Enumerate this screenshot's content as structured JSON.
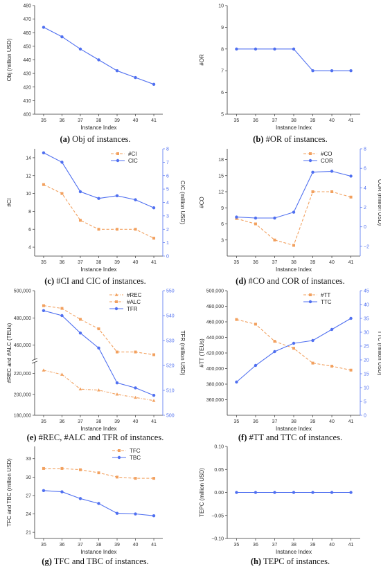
{
  "colors": {
    "blue": "#4f6ff0",
    "orange": "#f2a05e",
    "axis": "#333333"
  },
  "chart_data": [
    {
      "id": "a",
      "type": "line",
      "caption_letter": "(a)",
      "caption_text": " Obj of instances.",
      "xlabel": "Instance Index",
      "ylabel": "Obj (million USD)",
      "x": [
        35,
        36,
        37,
        38,
        39,
        40,
        41
      ],
      "ylim": [
        400,
        480
      ],
      "yticks": [
        400,
        410,
        420,
        430,
        440,
        450,
        460,
        470,
        480
      ],
      "series": [
        {
          "name": "",
          "axis": "left",
          "color": "blue",
          "style": "solid",
          "marker": "circle",
          "values": [
            464,
            457,
            448,
            440,
            432,
            427,
            422
          ]
        }
      ]
    },
    {
      "id": "b",
      "type": "line",
      "caption_letter": "(b)",
      "caption_text": " #OR of instances.",
      "xlabel": "Instance Index",
      "ylabel": "#OR",
      "x": [
        35,
        36,
        37,
        38,
        39,
        40,
        41
      ],
      "ylim": [
        5,
        10
      ],
      "yticks": [
        5,
        6,
        7,
        8,
        9,
        10
      ],
      "series": [
        {
          "name": "",
          "axis": "left",
          "color": "blue",
          "style": "solid",
          "marker": "circle",
          "values": [
            8,
            8,
            8,
            8,
            7,
            7,
            7
          ]
        }
      ]
    },
    {
      "id": "c",
      "type": "line",
      "caption_letter": "(c)",
      "caption_text": " #CI and CIC of instances.",
      "xlabel": "Instance Index",
      "ylabel": "#CI",
      "ylabel2": "CIC (million USD)",
      "x": [
        35,
        36,
        37,
        38,
        39,
        40,
        41
      ],
      "ylim": [
        3,
        15
      ],
      "yticks": [
        4,
        6,
        8,
        10,
        12,
        14
      ],
      "y2lim": [
        0,
        8
      ],
      "y2ticks": [
        0,
        1,
        2,
        3,
        4,
        5,
        6,
        7,
        8
      ],
      "legend": "top-right",
      "series": [
        {
          "name": "#CI",
          "axis": "left",
          "color": "orange",
          "style": "dashed",
          "marker": "square",
          "values": [
            11,
            10,
            7,
            6,
            6,
            6,
            5
          ]
        },
        {
          "name": "CIC",
          "axis": "right",
          "color": "blue",
          "style": "solid",
          "marker": "circle",
          "values": [
            7.7,
            7.0,
            4.8,
            4.3,
            4.5,
            4.2,
            3.6
          ]
        }
      ]
    },
    {
      "id": "d",
      "type": "line",
      "caption_letter": "(d)",
      "caption_text": " #CO and COR of instances.",
      "xlabel": "Instance Index",
      "ylabel": "#CO",
      "ylabel2": "COR (million USD)",
      "x": [
        35,
        36,
        37,
        38,
        39,
        40,
        41
      ],
      "ylim": [
        0,
        20
      ],
      "yticks": [
        3,
        6,
        9,
        12,
        15,
        18
      ],
      "y2lim": [
        -3,
        8
      ],
      "y2ticks": [
        -2,
        0,
        2,
        4,
        6,
        8
      ],
      "legend": "top-right",
      "series": [
        {
          "name": "#CO",
          "axis": "left",
          "color": "orange",
          "style": "dashed",
          "marker": "square",
          "values": [
            7,
            6,
            3,
            2,
            12,
            12,
            11
          ]
        },
        {
          "name": "COR",
          "axis": "right",
          "color": "blue",
          "style": "solid",
          "marker": "circle",
          "values": [
            1.0,
            0.9,
            0.9,
            1.5,
            5.6,
            5.7,
            5.2
          ]
        }
      ]
    },
    {
      "id": "e",
      "type": "line",
      "caption_letter": "(e)",
      "caption_text": " #REC, #ALC and TFR of instances.",
      "xlabel": "Instance Index",
      "ylabel": "#REC and #ALC (TEUs)",
      "ylabel2": "TFR (million USD)",
      "x": [
        35,
        36,
        37,
        38,
        39,
        40,
        41
      ],
      "ytick_labels": [
        "180,000",
        "200,000",
        "220,000",
        "460,000",
        "480,000",
        "500,000"
      ],
      "y_break": [
        220000,
        450000
      ],
      "y2lim": [
        500,
        550
      ],
      "y2ticks": [
        500,
        510,
        520,
        530,
        540,
        550
      ],
      "legend": "top-right",
      "series": [
        {
          "name": "#REC",
          "axis": "left",
          "color": "orange",
          "style": "dashdot",
          "marker": "triangle",
          "values": [
            223000,
            219000,
            205000,
            204000,
            200000,
            197000,
            194000
          ]
        },
        {
          "name": "#ALC",
          "axis": "left",
          "color": "orange",
          "style": "dashed",
          "marker": "square",
          "values": [
            489000,
            487000,
            479000,
            472000,
            455000,
            455000,
            453000
          ]
        },
        {
          "name": "TFR",
          "axis": "right",
          "color": "blue",
          "style": "solid",
          "marker": "circle",
          "values": [
            542,
            540,
            533,
            527,
            513,
            511,
            508
          ]
        }
      ]
    },
    {
      "id": "f",
      "type": "line",
      "caption_letter": "(f)",
      "caption_text": " #TT and TTC of instances.",
      "xlabel": "Instance Index",
      "ylabel": "#TT (TEUs)",
      "ylabel2": "TTC (million USD)",
      "x": [
        35,
        36,
        37,
        38,
        39,
        40,
        41
      ],
      "ylim": [
        340000,
        500000
      ],
      "yticks": [
        360000,
        380000,
        400000,
        420000,
        440000,
        460000,
        480000,
        500000
      ],
      "ytick_labels": [
        "360,000",
        "380,000",
        "400,000",
        "420,000",
        "440,000",
        "460,000",
        "480,000",
        "500,000"
      ],
      "y2lim": [
        0,
        45
      ],
      "y2ticks": [
        0,
        5,
        10,
        15,
        20,
        25,
        30,
        35,
        40,
        45
      ],
      "legend": "top-right",
      "series": [
        {
          "name": "#TT",
          "axis": "left",
          "color": "orange",
          "style": "dashed",
          "marker": "square",
          "values": [
            463000,
            457000,
            435000,
            426000,
            407000,
            403000,
            398000
          ]
        },
        {
          "name": "TTC",
          "axis": "right",
          "color": "blue",
          "style": "solid",
          "marker": "circle",
          "values": [
            12,
            18,
            23,
            26,
            27,
            31,
            35
          ]
        }
      ]
    },
    {
      "id": "g",
      "type": "line",
      "caption_letter": "(g)",
      "caption_text": " TFC and TBC of instances.",
      "xlabel": "Instance Index",
      "ylabel": "TFC and TBC (million USD)",
      "x": [
        35,
        36,
        37,
        38,
        39,
        40,
        41
      ],
      "ylim": [
        20,
        35
      ],
      "yticks": [
        21,
        24,
        27,
        30,
        33
      ],
      "legend": "top-right",
      "series": [
        {
          "name": "TFC",
          "axis": "left",
          "color": "orange",
          "style": "dashed",
          "marker": "square",
          "values": [
            31.4,
            31.4,
            31.2,
            30.7,
            30.0,
            29.8,
            29.8
          ]
        },
        {
          "name": "TBC",
          "axis": "left",
          "color": "blue",
          "style": "solid",
          "marker": "circle",
          "values": [
            27.8,
            27.6,
            26.5,
            25.7,
            24.1,
            24.0,
            23.7
          ]
        }
      ]
    },
    {
      "id": "h",
      "type": "line",
      "caption_letter": "(h)",
      "caption_text": " TEPC of instances.",
      "xlabel": "Instance Index",
      "ylabel": "TEPC (million USD)",
      "x": [
        35,
        36,
        37,
        38,
        39,
        40,
        41
      ],
      "ylim": [
        -0.1,
        0.1
      ],
      "yticks": [
        -0.1,
        -0.05,
        0,
        0.05,
        0.1
      ],
      "ytick_labels": [
        "−0.10",
        "−0.05",
        "0.00",
        "0.05",
        "0.10"
      ],
      "series": [
        {
          "name": "",
          "axis": "left",
          "color": "blue",
          "style": "solid",
          "marker": "circle",
          "values": [
            0,
            0,
            0,
            0,
            0,
            0,
            0
          ]
        }
      ]
    }
  ]
}
